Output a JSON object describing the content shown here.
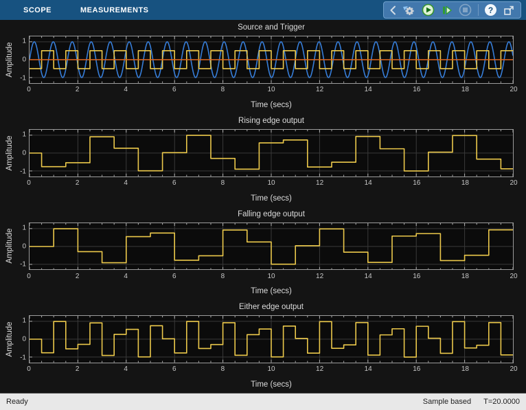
{
  "tabbar": {
    "tabs": [
      {
        "label": "SCOPE"
      },
      {
        "label": "MEASUREMENTS"
      }
    ],
    "toolbar": {
      "help_glyph": "?",
      "buttons": [
        {
          "name": "collapse-toolbar"
        },
        {
          "name": "configuration-properties"
        },
        {
          "name": "run"
        },
        {
          "name": "step-forward"
        },
        {
          "name": "stop",
          "disabled": true
        },
        {
          "name": "help"
        },
        {
          "name": "pop-out"
        }
      ]
    }
  },
  "statusbar": {
    "left": "Ready",
    "mode": "Sample based",
    "time": "T=20.0000"
  },
  "colors": {
    "source_blue": "#377ed9",
    "trigger_yellow": "#ecc94b",
    "level_orange": "#e0661f",
    "grid": "#3a3a3a",
    "tick": "#b2b2b2",
    "axes_bg": "#0b0b0b",
    "axes_border": "#9c9c9c",
    "tab_blue": "#175280",
    "toolbar_blue": "#4278ad"
  },
  "chart_data": {
    "type": "line",
    "grid": true,
    "x_minor_step": 0.5,
    "plots": [
      {
        "title": "Source and Trigger",
        "xlabel": "Time (secs)",
        "ylabel": "Amplitude",
        "xlim": [
          0,
          20
        ],
        "ylim": [
          -1.3,
          1.3
        ],
        "x_ticks": [
          0,
          2,
          4,
          6,
          8,
          10,
          12,
          14,
          16,
          18,
          20
        ],
        "y_ticks": [
          1,
          0,
          -1
        ],
        "series": [
          {
            "name": "source-sine",
            "color": "#377ed9",
            "type": "sine",
            "amplitude": 1,
            "omega_rad_per_s": 8,
            "phase": 0
          },
          {
            "name": "trigger-square",
            "color": "#ecc94b",
            "type": "square",
            "low": -0.5,
            "high": 0.5,
            "period": 1,
            "first_rise": 0.5
          },
          {
            "name": "trigger-level",
            "color": "#e0661f",
            "type": "constant",
            "value": 0
          }
        ]
      },
      {
        "title": "Rising edge output",
        "xlabel": "Time (secs)",
        "ylabel": "Amplitude",
        "xlim": [
          0,
          20
        ],
        "ylim": [
          -1.3,
          1.3
        ],
        "x_ticks": [
          0,
          2,
          4,
          6,
          8,
          10,
          12,
          14,
          16,
          18,
          20
        ],
        "y_ticks": [
          1,
          0,
          -1
        ],
        "series": [
          {
            "name": "rising-edge-output",
            "color": "#ecc94b",
            "type": "step",
            "initial": 0,
            "first_edge": 0.5,
            "edge_interval": 1,
            "values": [
              -0.76,
              -0.54,
              0.91,
              0.27,
              -0.99,
              0.02,
              0.99,
              -0.3,
              -0.9,
              0.57,
              0.73,
              -0.78,
              -0.51,
              0.93,
              0.24,
              -1.0,
              0.05,
              0.98,
              -0.34,
              -0.88
            ]
          }
        ]
      },
      {
        "title": "Falling edge output",
        "xlabel": "Time (secs)",
        "ylabel": "Amplitude",
        "xlim": [
          0,
          20
        ],
        "ylim": [
          -1.3,
          1.3
        ],
        "x_ticks": [
          0,
          2,
          4,
          6,
          8,
          10,
          12,
          14,
          16,
          18,
          20
        ],
        "y_ticks": [
          1,
          0,
          -1
        ],
        "series": [
          {
            "name": "falling-edge-output",
            "color": "#ecc94b",
            "type": "step",
            "initial": 0,
            "first_edge": 1,
            "edge_interval": 1,
            "values": [
              0.99,
              -0.29,
              -0.91,
              0.55,
              0.75,
              -0.77,
              -0.52,
              0.92,
              0.25,
              -0.99,
              0.04,
              0.98,
              -0.32,
              -0.89,
              0.58,
              0.72,
              -0.79,
              -0.49,
              0.93
            ]
          }
        ]
      },
      {
        "title": "Either edge output",
        "xlabel": "Time (secs)",
        "ylabel": "Amplitude",
        "xlim": [
          0,
          20
        ],
        "ylim": [
          -1.3,
          1.3
        ],
        "x_ticks": [
          0,
          2,
          4,
          6,
          8,
          10,
          12,
          14,
          16,
          18,
          20
        ],
        "y_ticks": [
          1,
          0,
          -1
        ],
        "series": [
          {
            "name": "either-edge-output",
            "color": "#ecc94b",
            "type": "step",
            "initial": 0,
            "first_edge": 0.5,
            "edge_interval": 0.5,
            "values": [
              -0.76,
              0.99,
              -0.54,
              -0.29,
              0.91,
              -0.91,
              0.27,
              0.55,
              -0.99,
              0.75,
              0.02,
              -0.77,
              0.99,
              -0.52,
              -0.3,
              0.92,
              -0.9,
              0.25,
              0.57,
              -0.99,
              0.73,
              0.04,
              -0.78,
              0.98,
              -0.51,
              -0.32,
              0.93,
              -0.89,
              0.24,
              0.58,
              -1.0,
              0.72,
              0.05,
              -0.79,
              0.98,
              -0.49,
              -0.34,
              0.93,
              -0.88
            ]
          }
        ]
      }
    ]
  }
}
